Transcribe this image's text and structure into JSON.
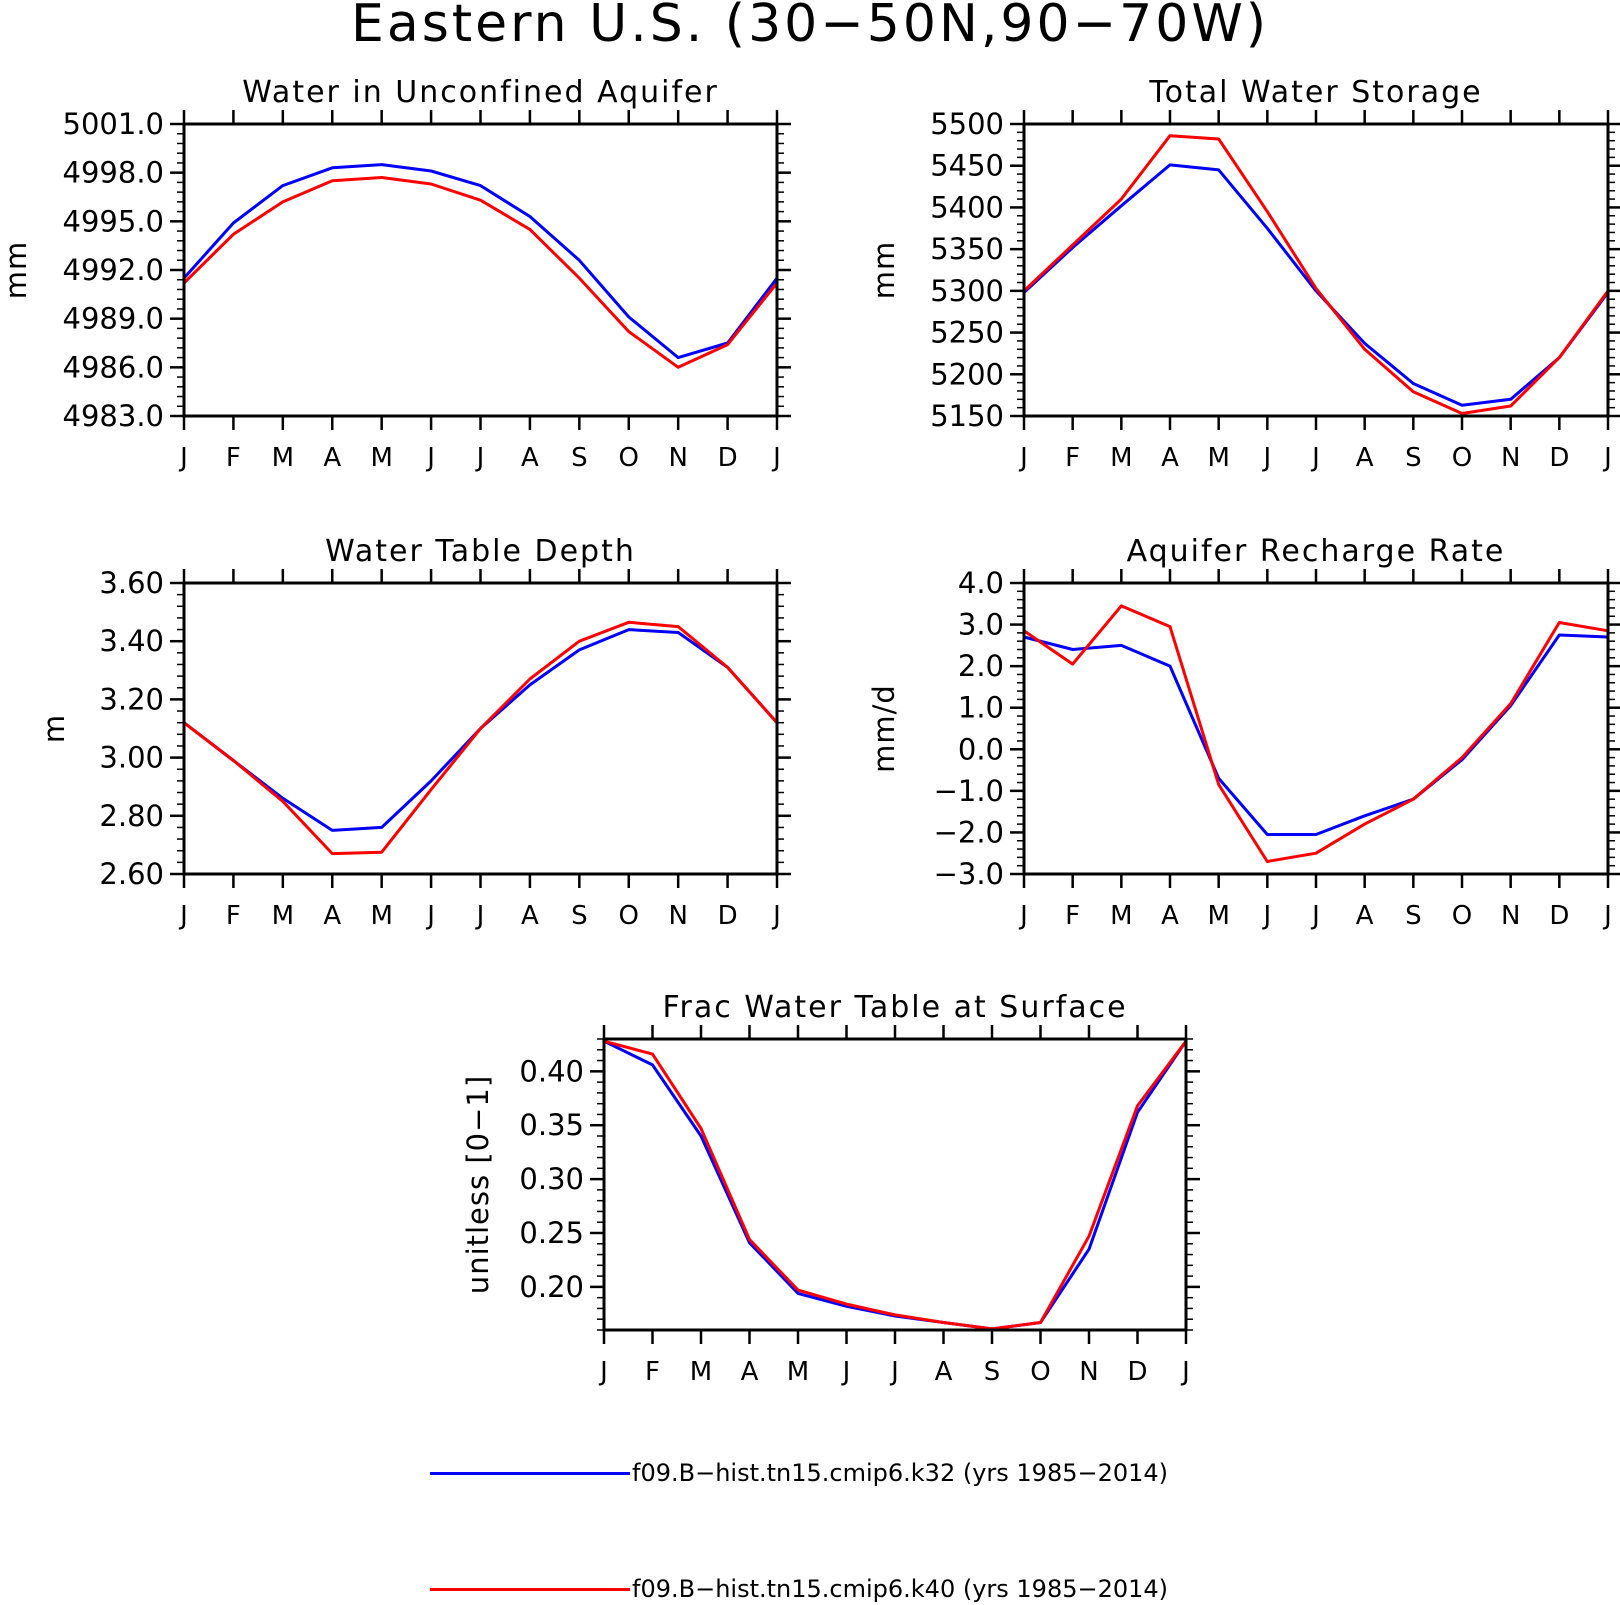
{
  "figure_title": "Eastern U.S. (30−50N,90−70W)",
  "month_ticks": [
    "J",
    "F",
    "M",
    "A",
    "M",
    "J",
    "J",
    "A",
    "S",
    "O",
    "N",
    "D",
    "J"
  ],
  "colors": {
    "blue": "#0000ff",
    "red": "#ff0000"
  },
  "legend": [
    {
      "label": "f09.B−hist.tn15.cmip6.k32 (yrs 1985−2014)",
      "color": "#0000ff"
    },
    {
      "label": "f09.B−hist.tn15.cmip6.k40 (yrs 1985−2014)",
      "color": "#ff0000"
    }
  ],
  "chart_data": [
    {
      "type": "line",
      "title": "Water in Unconfined Aquifer",
      "ylabel": "mm",
      "ylim": [
        4983.0,
        5001.0
      ],
      "yticks": [
        4983.0,
        4986.0,
        4989.0,
        4992.0,
        4995.0,
        4998.0,
        5001.0
      ],
      "ytick_labels": [
        "4983.0",
        "4986.0",
        "4989.0",
        "4992.0",
        "4995.0",
        "4998.0",
        "5001.0"
      ],
      "series": [
        {
          "color": "#0000ff",
          "values": [
            4991.5,
            4994.9,
            4997.2,
            4998.3,
            4998.5,
            4998.1,
            4997.2,
            4995.3,
            4992.6,
            4989.1,
            4986.6,
            4987.5,
            4991.5
          ]
        },
        {
          "color": "#ff0000",
          "values": [
            4991.2,
            4994.2,
            4996.2,
            4997.5,
            4997.7,
            4997.3,
            4996.3,
            4994.5,
            4991.5,
            4988.2,
            4986.0,
            4987.4,
            4991.2
          ]
        }
      ]
    },
    {
      "type": "line",
      "title": "Total Water Storage",
      "ylabel": "mm",
      "ylim": [
        5150,
        5500
      ],
      "yticks": [
        5150,
        5200,
        5250,
        5300,
        5350,
        5400,
        5450,
        5500
      ],
      "ytick_labels": [
        "5150",
        "5200",
        "5250",
        "5300",
        "5350",
        "5400",
        "5450",
        "5500"
      ],
      "series": [
        {
          "color": "#0000ff",
          "values": [
            5298,
            5352,
            5402,
            5451,
            5445,
            5375,
            5300,
            5237,
            5189,
            5163,
            5170,
            5220,
            5298
          ]
        },
        {
          "color": "#ff0000",
          "values": [
            5300,
            5355,
            5410,
            5486,
            5482,
            5395,
            5303,
            5230,
            5179,
            5153,
            5162,
            5220,
            5300
          ]
        }
      ]
    },
    {
      "type": "line",
      "title": "Water Table Depth",
      "ylabel": "m",
      "ylim": [
        2.6,
        3.6
      ],
      "yticks": [
        2.6,
        2.8,
        3.0,
        3.2,
        3.4,
        3.6
      ],
      "ytick_labels": [
        "2.60",
        "2.80",
        "3.00",
        "3.20",
        "3.40",
        "3.60"
      ],
      "series": [
        {
          "color": "#0000ff",
          "values": [
            3.12,
            2.99,
            2.86,
            2.75,
            2.76,
            2.92,
            3.1,
            3.25,
            3.37,
            3.44,
            3.43,
            3.31,
            3.12
          ]
        },
        {
          "color": "#ff0000",
          "values": [
            3.12,
            2.99,
            2.85,
            2.67,
            2.675,
            2.89,
            3.1,
            3.27,
            3.4,
            3.465,
            3.45,
            3.31,
            3.12
          ]
        }
      ]
    },
    {
      "type": "line",
      "title": "Aquifer Recharge Rate",
      "ylabel": "mm/d",
      "ylim": [
        -3.0,
        4.0
      ],
      "yticks": [
        -3.0,
        -2.0,
        -1.0,
        0.0,
        1.0,
        2.0,
        3.0,
        4.0
      ],
      "ytick_labels": [
        "−3.0",
        "−2.0",
        "−1.0",
        "0.0",
        "1.0",
        "2.0",
        "3.0",
        "4.0"
      ],
      "series": [
        {
          "color": "#0000ff",
          "values": [
            2.7,
            2.4,
            2.5,
            2.0,
            -0.7,
            -2.05,
            -2.05,
            -1.6,
            -1.2,
            -0.25,
            1.05,
            2.75,
            2.7
          ]
        },
        {
          "color": "#ff0000",
          "values": [
            2.85,
            2.05,
            3.45,
            2.95,
            -0.85,
            -2.7,
            -2.5,
            -1.8,
            -1.2,
            -0.2,
            1.1,
            3.05,
            2.85
          ]
        }
      ]
    },
    {
      "type": "line",
      "title": "Frac Water Table at Surface",
      "ylabel": "unitless [0−1]",
      "ylim": [
        0.16,
        0.43
      ],
      "yticks": [
        0.2,
        0.25,
        0.3,
        0.35,
        0.4
      ],
      "ytick_labels": [
        "0.20",
        "0.25",
        "0.30",
        "0.35",
        "0.40"
      ],
      "series": [
        {
          "color": "#0000ff",
          "values": [
            0.428,
            0.406,
            0.34,
            0.241,
            0.194,
            0.182,
            0.173,
            0.167,
            0.161,
            0.167,
            0.235,
            0.362,
            0.428
          ]
        },
        {
          "color": "#ff0000",
          "values": [
            0.428,
            0.416,
            0.347,
            0.244,
            0.197,
            0.184,
            0.174,
            0.167,
            0.161,
            0.167,
            0.247,
            0.368,
            0.428
          ]
        }
      ]
    }
  ]
}
